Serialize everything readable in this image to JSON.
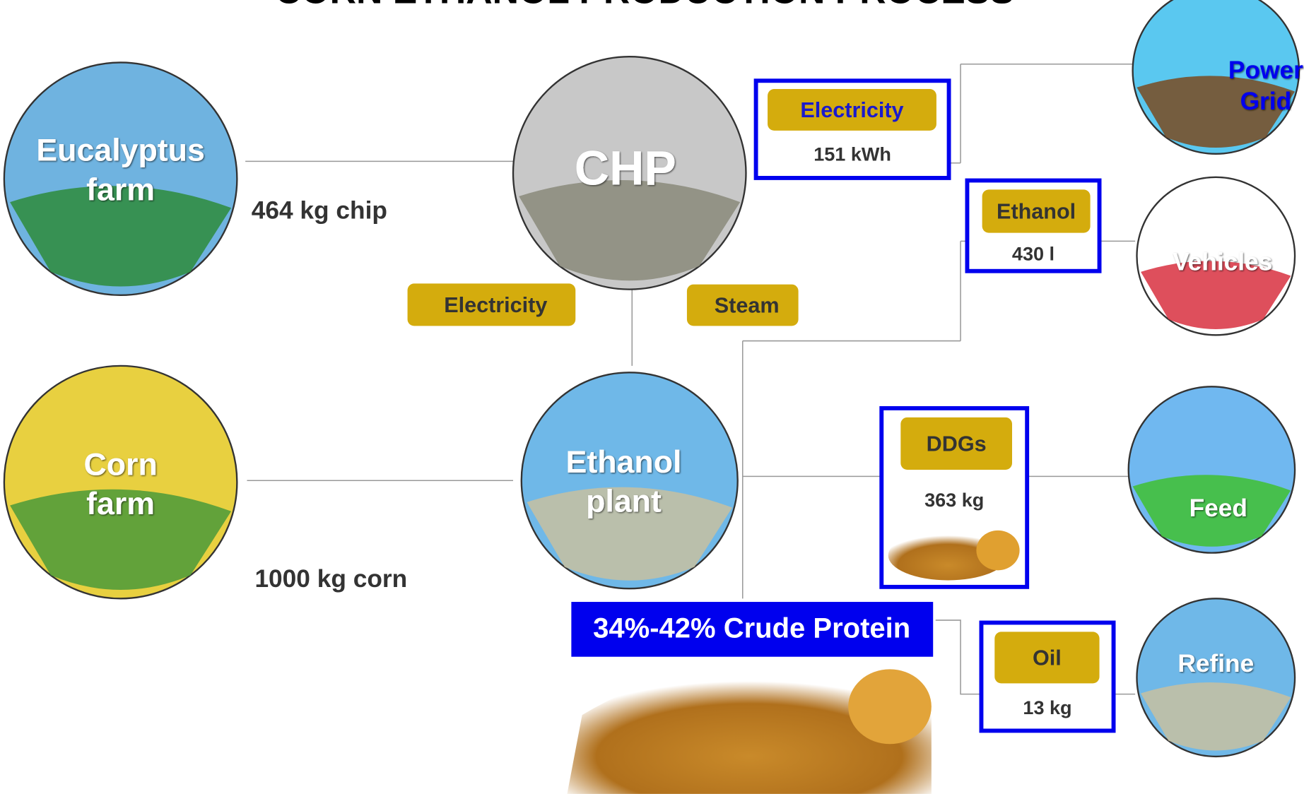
{
  "title": "CORN ETHANOL PRODUCTION PROCESS",
  "nodes": [
    {
      "lines": [
        "Eucalyptus",
        "farm"
      ]
    },
    {
      "lines": [
        "Corn",
        "farm"
      ]
    },
    {
      "lines": [
        "CHP"
      ]
    },
    {
      "lines": [
        "Ethanol",
        "plant"
      ]
    },
    {
      "lines": [
        "Power",
        "Grid"
      ]
    },
    {
      "lines": [
        "Vehicles"
      ]
    },
    {
      "lines": [
        "Feed"
      ]
    },
    {
      "lines": [
        "Refine"
      ]
    }
  ],
  "flows": [
    "464 kg chip",
    "1000 kg corn",
    "Electricity",
    "Steam"
  ],
  "products": [
    {
      "name": "Electricity",
      "amount": "151 kWh"
    },
    {
      "name": "Ethanol",
      "amount": "430 l"
    },
    {
      "name": "DDGs",
      "amount": "363 kg"
    },
    {
      "name": "Oil",
      "amount": "13 kg"
    }
  ],
  "banner": "34%-42% Crude Protein"
}
